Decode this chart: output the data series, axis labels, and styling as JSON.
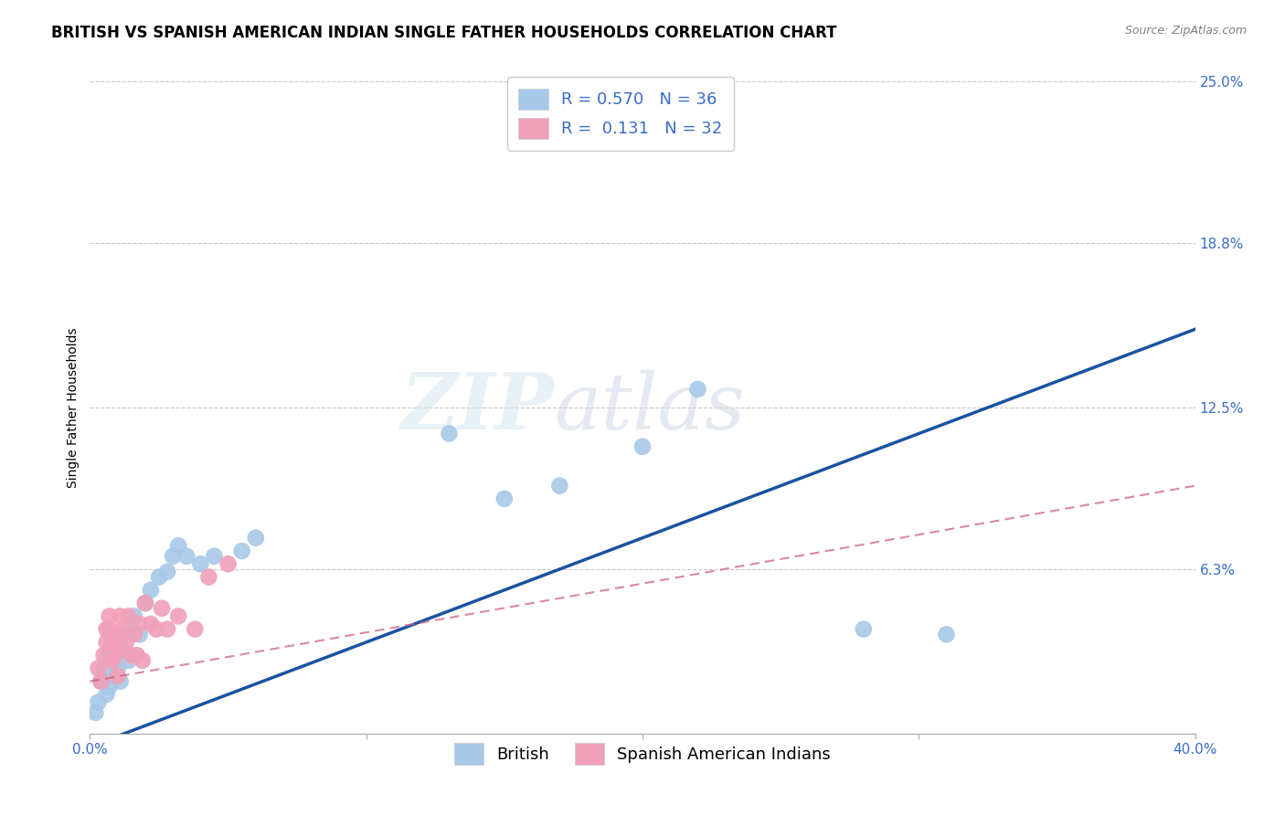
{
  "title": "BRITISH VS SPANISH AMERICAN INDIAN SINGLE FATHER HOUSEHOLDS CORRELATION CHART",
  "source": "Source: ZipAtlas.com",
  "ylabel_label": "Single Father Households",
  "x_min": 0.0,
  "x_max": 0.4,
  "y_min": 0.0,
  "y_max": 0.25,
  "x_ticks": [
    0.0,
    0.1,
    0.2,
    0.3,
    0.4
  ],
  "y_ticks_right": [
    0.25,
    0.188,
    0.125,
    0.063,
    0.0
  ],
  "y_tick_labels_right": [
    "25.0%",
    "18.8%",
    "12.5%",
    "6.3%",
    ""
  ],
  "watermark": "ZIPatlas",
  "legend_r_british": "0.570",
  "legend_n_british": "36",
  "legend_r_spanish": "0.131",
  "legend_n_spanish": "32",
  "british_color": "#a8c8e8",
  "british_line_color": "#1a52a0",
  "spanish_color": "#f0a0b8",
  "spanish_line_color": "#d06080",
  "background_color": "#ffffff",
  "grid_color": "#c8c8c8",
  "title_fontsize": 12,
  "axis_label_fontsize": 10,
  "tick_fontsize": 11,
  "legend_fontsize": 13,
  "british_x": [
    0.002,
    0.003,
    0.004,
    0.005,
    0.006,
    0.007,
    0.007,
    0.008,
    0.009,
    0.01,
    0.01,
    0.011,
    0.012,
    0.013,
    0.014,
    0.015,
    0.016,
    0.018,
    0.02,
    0.022,
    0.025,
    0.028,
    0.03,
    0.032,
    0.035,
    0.04,
    0.045,
    0.055,
    0.06,
    0.13,
    0.15,
    0.17,
    0.2,
    0.22,
    0.28,
    0.31
  ],
  "british_y": [
    0.008,
    0.012,
    0.02,
    0.025,
    0.015,
    0.018,
    0.03,
    0.022,
    0.028,
    0.025,
    0.035,
    0.02,
    0.032,
    0.038,
    0.028,
    0.04,
    0.045,
    0.038,
    0.05,
    0.055,
    0.06,
    0.062,
    0.068,
    0.072,
    0.068,
    0.065,
    0.068,
    0.07,
    0.075,
    0.115,
    0.09,
    0.095,
    0.11,
    0.132,
    0.04,
    0.038
  ],
  "spanish_x": [
    0.003,
    0.004,
    0.005,
    0.006,
    0.006,
    0.007,
    0.007,
    0.008,
    0.008,
    0.009,
    0.009,
    0.01,
    0.01,
    0.011,
    0.011,
    0.012,
    0.013,
    0.014,
    0.015,
    0.016,
    0.017,
    0.018,
    0.019,
    0.02,
    0.022,
    0.024,
    0.026,
    0.028,
    0.032,
    0.038,
    0.043,
    0.05
  ],
  "spanish_y": [
    0.025,
    0.02,
    0.03,
    0.035,
    0.04,
    0.04,
    0.045,
    0.028,
    0.035,
    0.03,
    0.038,
    0.022,
    0.032,
    0.038,
    0.045,
    0.04,
    0.035,
    0.045,
    0.03,
    0.038,
    0.03,
    0.042,
    0.028,
    0.05,
    0.042,
    0.04,
    0.048,
    0.04,
    0.045,
    0.04,
    0.06,
    0.065
  ],
  "british_line_x0": 0.0,
  "british_line_y0": -0.005,
  "british_line_x1": 0.4,
  "british_line_y1": 0.155,
  "spanish_line_x0": 0.0,
  "spanish_line_y0": 0.02,
  "spanish_line_x1": 0.4,
  "spanish_line_y1": 0.095
}
